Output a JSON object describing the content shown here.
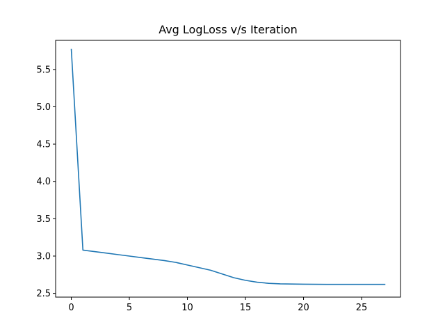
{
  "chart_data": {
    "type": "line",
    "title": "Avg LogLoss v/s Iteration",
    "xlabel": "",
    "ylabel": "",
    "xlim": [
      -1.35,
      28.35
    ],
    "ylim": [
      2.45,
      5.89
    ],
    "xticks": [
      0,
      5,
      10,
      15,
      20,
      25
    ],
    "yticks": [
      2.5,
      3.0,
      3.5,
      4.0,
      4.5,
      5.0,
      5.5
    ],
    "ytick_labels": [
      "2.5",
      "3.0",
      "3.5",
      "4.0",
      "4.5",
      "5.0",
      "5.5"
    ],
    "grid": false,
    "legend": "none",
    "series": [
      {
        "color": "#1f77b4",
        "x": [
          0,
          1,
          2,
          3,
          4,
          5,
          6,
          7,
          8,
          9,
          10,
          11,
          12,
          13,
          14,
          15,
          16,
          17,
          18,
          19,
          20,
          21,
          22,
          23,
          24,
          25,
          26,
          27
        ],
        "y": [
          5.77,
          3.08,
          3.06,
          3.04,
          3.02,
          3.0,
          2.98,
          2.96,
          2.94,
          2.915,
          2.88,
          2.845,
          2.81,
          2.76,
          2.71,
          2.675,
          2.65,
          2.635,
          2.628,
          2.625,
          2.623,
          2.622,
          2.621,
          2.621,
          2.621,
          2.621,
          2.621,
          2.621
        ]
      }
    ]
  }
}
